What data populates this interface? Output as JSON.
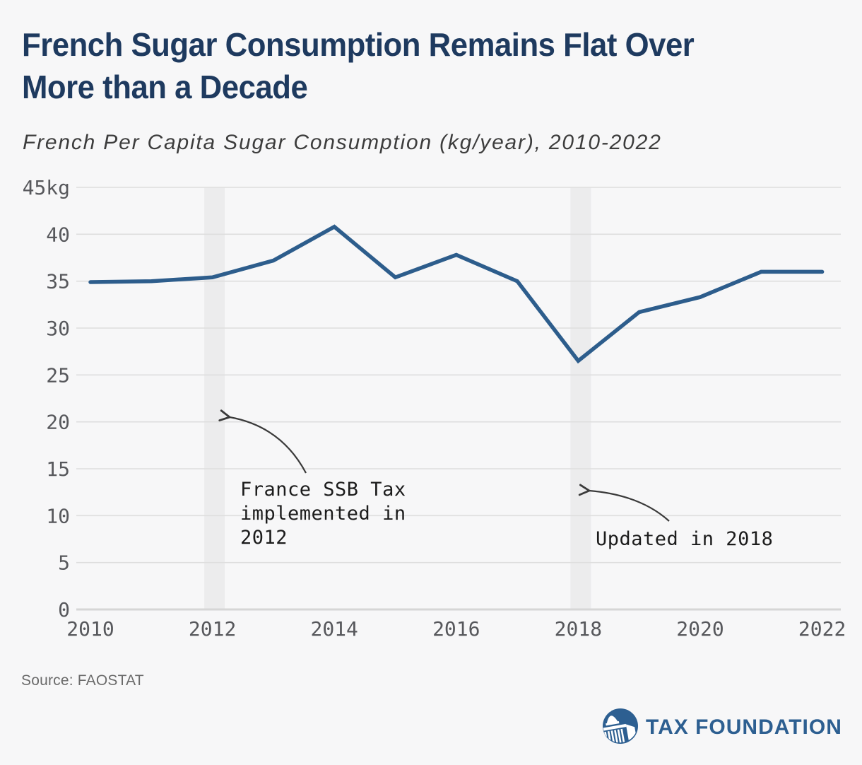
{
  "header": {
    "title_lines": [
      "French Sugar Consumption Remains Flat Over",
      "More than a Decade"
    ],
    "subtitle": "French Per Capita Sugar Consumption (kg/year), 2010-2022"
  },
  "chart_data": {
    "type": "line",
    "title": "French Sugar Consumption Remains Flat Over More than a Decade",
    "subtitle": "French Per Capita Sugar Consumption (kg/year), 2010-2022",
    "x": [
      2010,
      2011,
      2012,
      2013,
      2014,
      2015,
      2016,
      2017,
      2018,
      2019,
      2020,
      2021,
      2022
    ],
    "values": [
      34.9,
      35.0,
      35.4,
      37.2,
      40.8,
      35.4,
      37.8,
      35.0,
      26.5,
      31.7,
      33.3,
      36.0,
      36.0
    ],
    "series_name": "French per capita sugar consumption (kg/year)",
    "ylim": [
      0,
      45
    ],
    "yticks": [
      0,
      5,
      10,
      15,
      20,
      25,
      30,
      35,
      40,
      45
    ],
    "ytick_labels": [
      "0",
      "5",
      "10",
      "15",
      "20",
      "25",
      "30",
      "35",
      "40",
      "45kg"
    ],
    "xticks": [
      2010,
      2012,
      2014,
      2016,
      2018,
      2020,
      2022
    ],
    "grid": true,
    "legend": "none",
    "shaded_years": [
      2012,
      2018
    ],
    "annotations": [
      {
        "text": "France SSB Tax\nimplemented in\n2012",
        "points_to_year": 2012
      },
      {
        "text": "Updated in 2018",
        "points_to_year": 2018
      }
    ],
    "colors": {
      "line": "#2d5d8c",
      "band": "#ececed",
      "grid": "#dedede",
      "axis": "#d6d6d6",
      "tick_text": "#57585c",
      "arrow": "#3a3a3a"
    }
  },
  "footer": {
    "source": "Source: FAOSTAT",
    "logo_text": "TAX FOUNDATION",
    "logo_color": "#2d5f91"
  }
}
